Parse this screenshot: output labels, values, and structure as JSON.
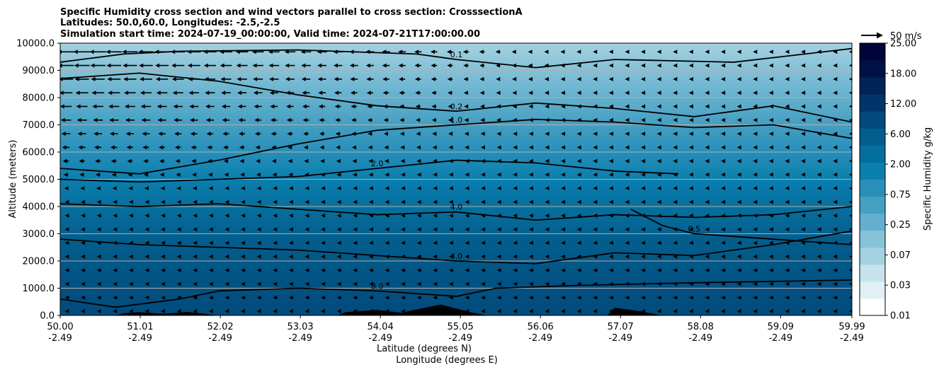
{
  "title_lines": [
    "Specific Humidity cross section and wind vectors parallel to cross section: CrosssectionA",
    "Latitudes: 50.0,60.0, Longitudes: -2.5,-2.5",
    "Simulation start time: 2024-07-19_00:00:00, Valid time: 2024-07-21T17:00:00.00"
  ],
  "quiver_key_label": "50 m/s",
  "colors": {
    "background_low": "#035e8d",
    "background_high": "#a4d2e1",
    "contour": "#000000",
    "terrain": "#000000",
    "grid": "#b0b0b0"
  },
  "chart_data": {
    "type": "contour-cross-section",
    "ylabel": "Altitude (meters)",
    "xlabel_lines": [
      "Latitude (degrees N)",
      "Longitude (degrees E)"
    ],
    "ylim": [
      0,
      10000
    ],
    "y_ticks": [
      "0.0",
      "1000.0",
      "2000.0",
      "3000.0",
      "4000.0",
      "5000.0",
      "6000.0",
      "7000.0",
      "8000.0",
      "9000.0",
      "10000.0"
    ],
    "x_ticks": [
      {
        "lat": "50.00",
        "lon": "-2.49"
      },
      {
        "lat": "51.01",
        "lon": "-2.49"
      },
      {
        "lat": "52.02",
        "lon": "-2.49"
      },
      {
        "lat": "53.03",
        "lon": "-2.49"
      },
      {
        "lat": "54.04",
        "lon": "-2.49"
      },
      {
        "lat": "55.05",
        "lon": "-2.49"
      },
      {
        "lat": "56.06",
        "lon": "-2.49"
      },
      {
        "lat": "57.07",
        "lon": "-2.49"
      },
      {
        "lat": "58.08",
        "lon": "-2.49"
      },
      {
        "lat": "59.09",
        "lon": "-2.49"
      },
      {
        "lat": "59.99",
        "lon": "-2.49"
      }
    ],
    "colorbar": {
      "label": "Specific Humidity g/kg",
      "levels": [
        "0.01",
        "0.03",
        "0.07",
        "0.25",
        "0.75",
        "2.00",
        "6.00",
        "12.00",
        "18.00",
        "25.00"
      ],
      "colors": [
        "#ffffff",
        "#e0f0f4",
        "#c6e3ec",
        "#a4d2e1",
        "#86c2d8",
        "#62b0cd",
        "#449fc3",
        "#2890b8",
        "#0a7fae",
        "#046f9f",
        "#035e8d",
        "#024a7c",
        "#01356a",
        "#012458",
        "#001146",
        "#00063a"
      ]
    },
    "contours": [
      {
        "label": "0.1",
        "points": [
          [
            50.0,
            9300
          ],
          [
            50.8,
            9600
          ],
          [
            51.5,
            9700
          ],
          [
            53.0,
            9750
          ],
          [
            54.5,
            9600
          ],
          [
            55.0,
            9400
          ],
          [
            56.0,
            9100
          ],
          [
            57.0,
            9400
          ],
          [
            58.5,
            9300
          ],
          [
            59.99,
            9800
          ]
        ]
      },
      {
        "label": "0.2",
        "points": [
          [
            50.0,
            8700
          ],
          [
            51.0,
            8900
          ],
          [
            52.0,
            8600
          ],
          [
            53.0,
            8100
          ],
          [
            54.0,
            7700
          ],
          [
            55.0,
            7500
          ],
          [
            56.0,
            7800
          ],
          [
            57.0,
            7600
          ],
          [
            58.0,
            7300
          ],
          [
            59.0,
            7700
          ],
          [
            59.99,
            7100
          ]
        ]
      },
      {
        "label": "1.0",
        "points": [
          [
            50.0,
            5400
          ],
          [
            51.0,
            5200
          ],
          [
            52.0,
            5700
          ],
          [
            53.0,
            6300
          ],
          [
            54.0,
            6800
          ],
          [
            55.0,
            7000
          ],
          [
            56.0,
            7200
          ],
          [
            57.0,
            7100
          ],
          [
            58.0,
            6900
          ],
          [
            59.0,
            7000
          ],
          [
            59.99,
            6500
          ]
        ]
      },
      {
        "label": "2.0",
        "points": [
          [
            50.0,
            5000
          ],
          [
            51.0,
            4900
          ],
          [
            52.0,
            5000
          ],
          [
            53.0,
            5100
          ],
          [
            54.0,
            5400
          ],
          [
            55.0,
            5700
          ],
          [
            56.0,
            5600
          ],
          [
            57.0,
            5300
          ],
          [
            57.8,
            5200
          ]
        ]
      },
      {
        "label": "4.0",
        "points": [
          [
            50.0,
            4100
          ],
          [
            51.0,
            4000
          ],
          [
            52.0,
            4100
          ],
          [
            53.0,
            3900
          ],
          [
            54.0,
            3700
          ],
          [
            55.0,
            3800
          ],
          [
            56.0,
            3500
          ],
          [
            57.0,
            3700
          ],
          [
            58.0,
            3600
          ],
          [
            59.0,
            3700
          ],
          [
            59.99,
            4000
          ]
        ]
      },
      {
        "label": "4.0",
        "points": [
          [
            50.0,
            2800
          ],
          [
            51.0,
            2600
          ],
          [
            52.0,
            2500
          ],
          [
            53.0,
            2400
          ],
          [
            54.0,
            2200
          ],
          [
            55.0,
            2000
          ],
          [
            56.0,
            1900
          ],
          [
            57.0,
            2300
          ],
          [
            58.0,
            2200
          ],
          [
            59.0,
            2600
          ],
          [
            59.99,
            3100
          ]
        ]
      },
      {
        "label": "0.5",
        "points": [
          [
            57.2,
            3900
          ],
          [
            57.6,
            3300
          ],
          [
            58.0,
            3000
          ],
          [
            59.0,
            2800
          ],
          [
            59.99,
            2600
          ]
        ]
      },
      {
        "label": "8.0",
        "points": [
          [
            50.0,
            600
          ],
          [
            50.7,
            300
          ],
          [
            51.5,
            600
          ],
          [
            52.0,
            900
          ],
          [
            53.0,
            1000
          ],
          [
            54.0,
            900
          ],
          [
            55.0,
            700
          ],
          [
            55.5,
            1000
          ],
          [
            56.5,
            1100
          ],
          [
            58.0,
            1200
          ],
          [
            59.99,
            1300
          ]
        ]
      }
    ],
    "terrain": [
      [
        50.0,
        0
      ],
      [
        50.7,
        0
      ],
      [
        50.8,
        80
      ],
      [
        51.0,
        120
      ],
      [
        51.3,
        60
      ],
      [
        51.6,
        130
      ],
      [
        52.0,
        0
      ],
      [
        53.5,
        0
      ],
      [
        53.6,
        120
      ],
      [
        54.0,
        200
      ],
      [
        54.3,
        100
      ],
      [
        54.6,
        280
      ],
      [
        54.8,
        400
      ],
      [
        55.0,
        250
      ],
      [
        55.2,
        100
      ],
      [
        55.4,
        0
      ],
      [
        56.9,
        0
      ],
      [
        57.0,
        280
      ],
      [
        57.3,
        160
      ],
      [
        57.6,
        0
      ],
      [
        59.99,
        0
      ]
    ]
  }
}
